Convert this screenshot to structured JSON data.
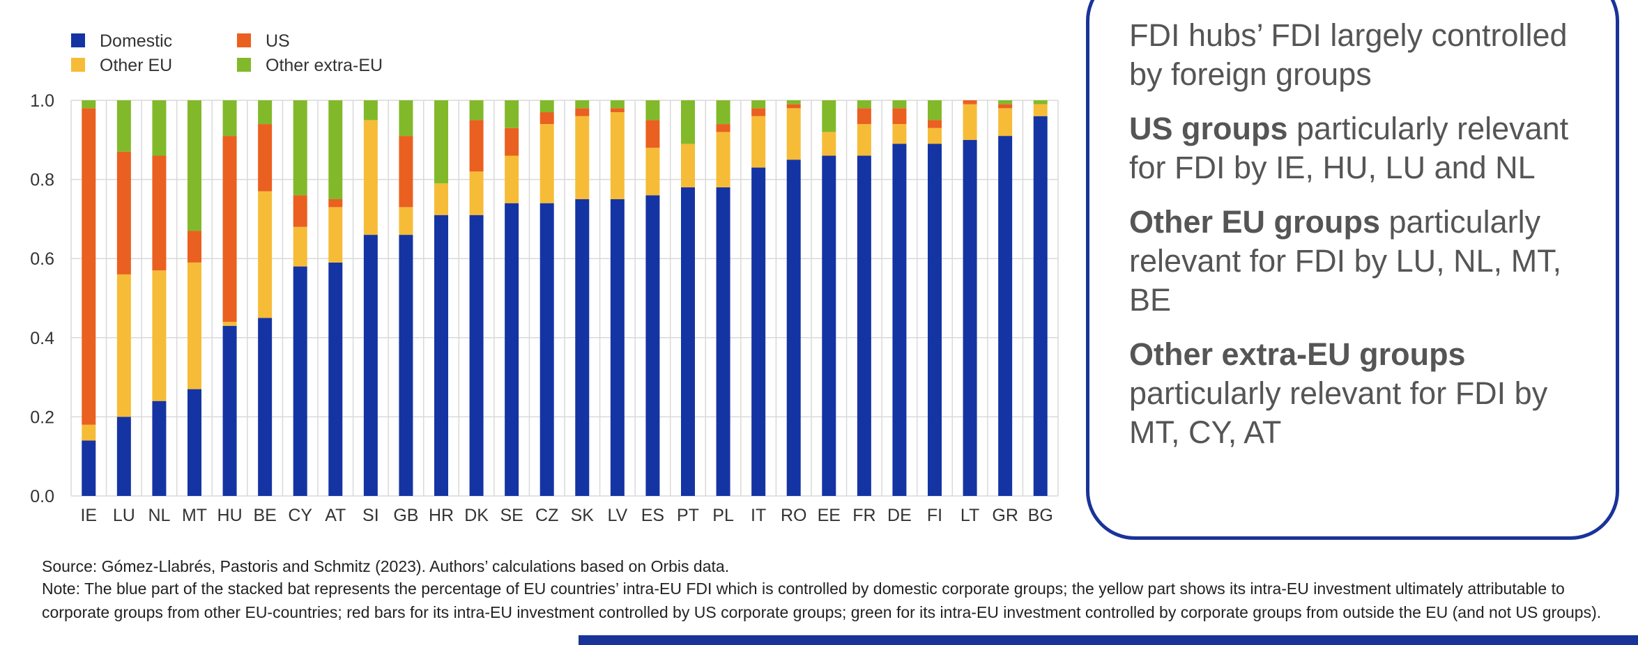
{
  "chart_data": {
    "type": "bar",
    "stacked": true,
    "categories": [
      "IE",
      "LU",
      "NL",
      "MT",
      "HU",
      "BE",
      "CY",
      "AT",
      "SI",
      "GB",
      "HR",
      "DK",
      "SE",
      "CZ",
      "SK",
      "LV",
      "ES",
      "PT",
      "PL",
      "IT",
      "RO",
      "EE",
      "FR",
      "DE",
      "FI",
      "LT",
      "GR",
      "BG"
    ],
    "series": [
      {
        "name": "Domestic",
        "color": "#1534a3",
        "values": [
          0.14,
          0.2,
          0.24,
          0.27,
          0.43,
          0.45,
          0.58,
          0.59,
          0.66,
          0.66,
          0.71,
          0.71,
          0.74,
          0.74,
          0.75,
          0.75,
          0.76,
          0.78,
          0.78,
          0.83,
          0.85,
          0.86,
          0.86,
          0.89,
          0.89,
          0.9,
          0.91,
          0.96
        ]
      },
      {
        "name": "Other EU",
        "color": "#f6bc37",
        "values": [
          0.04,
          0.36,
          0.33,
          0.32,
          0.01,
          0.32,
          0.1,
          0.14,
          0.29,
          0.07,
          0.08,
          0.11,
          0.12,
          0.2,
          0.21,
          0.22,
          0.12,
          0.11,
          0.14,
          0.13,
          0.13,
          0.06,
          0.08,
          0.05,
          0.04,
          0.09,
          0.07,
          0.03
        ]
      },
      {
        "name": "US",
        "color": "#ea6020",
        "values": [
          0.8,
          0.31,
          0.29,
          0.08,
          0.47,
          0.17,
          0.08,
          0.02,
          0.0,
          0.18,
          0.0,
          0.13,
          0.07,
          0.03,
          0.02,
          0.01,
          0.07,
          0.0,
          0.02,
          0.02,
          0.01,
          0.0,
          0.04,
          0.04,
          0.02,
          0.01,
          0.01,
          0.0
        ]
      },
      {
        "name": "Other extra-EU",
        "color": "#82b92a",
        "values": [
          0.02,
          0.13,
          0.14,
          0.33,
          0.09,
          0.06,
          0.24,
          0.25,
          0.05,
          0.09,
          0.21,
          0.05,
          0.07,
          0.03,
          0.02,
          0.02,
          0.05,
          0.11,
          0.06,
          0.02,
          0.01,
          0.08,
          0.02,
          0.02,
          0.05,
          0.0,
          0.01,
          0.01
        ]
      }
    ],
    "yticks": [
      "0.0",
      "0.2",
      "0.4",
      "0.6",
      "0.8",
      "1.0"
    ],
    "ylim": [
      0,
      1.0
    ],
    "grid": true,
    "legend": "top-left"
  },
  "panel": {
    "lines": [
      {
        "bold": "",
        "text": "FDI hubs’ FDI largely controlled by foreign groups"
      },
      {
        "bold": "US groups",
        "text": " particularly relevant for FDI by IE, HU, LU and NL"
      },
      {
        "bold": "Other EU groups",
        "text": " particularly relevant for FDI by LU, NL, MT, BE"
      },
      {
        "bold": "Other extra-EU groups",
        "text": " particularly relevant for FDI by MT, CY, AT"
      }
    ]
  },
  "source": "Source: Gómez-Llabrés, Pastoris and Schmitz (2023). Authors’ calculations based on Orbis data.",
  "note": "Note: The blue part of the stacked bat represents the percentage of EU countries’ intra-EU FDI which is controlled by domestic corporate groups; the yellow part shows its intra-EU investment ultimately attributable to corporate groups from other EU-countries; red bars for its intra-EU investment controlled by US corporate groups; green for its intra-EU investment controlled by corporate groups from outside the EU (and not US groups).",
  "colors": {
    "accent": "#1a3399"
  }
}
